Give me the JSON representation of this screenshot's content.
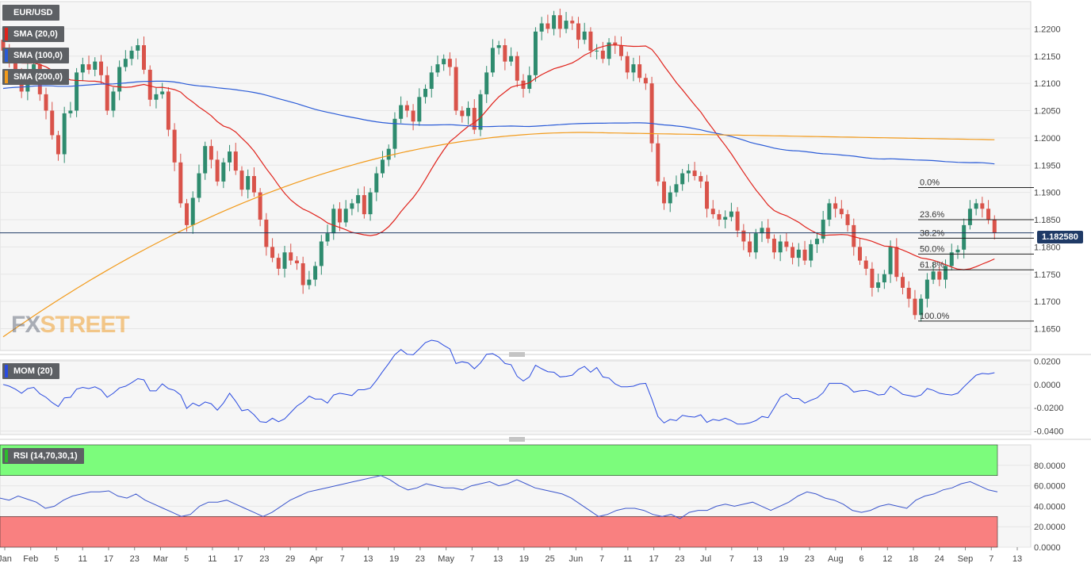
{
  "symbol": "EUR/USD",
  "indicators": {
    "sma20": {
      "label": "SMA (20,0)",
      "color": "#e0231c"
    },
    "sma100": {
      "label": "SMA (100,0)",
      "color": "#2a5bd7"
    },
    "sma200": {
      "label": "SMA (200,0)",
      "color": "#f29a1a"
    },
    "mom": {
      "label": "MOM (20)",
      "color": "#2a4be0"
    },
    "rsi": {
      "label": "RSI (14,70,30,1)",
      "color": "#3a55cc"
    }
  },
  "current_price": "1.182580",
  "logo": {
    "part1": "FX",
    "part2": "STREET"
  },
  "colors": {
    "bull": "#2e8b6e",
    "bear": "#d9534a",
    "overbought": "#7cfc7c",
    "oversold": "#f98080"
  },
  "chart_data": [
    {
      "type": "candlestick",
      "title": "EUR/USD",
      "x_ticks": [
        "Jan",
        "Feb",
        "5",
        "11",
        "17",
        "23",
        "Mar",
        "5",
        "11",
        "17",
        "23",
        "29",
        "Apr",
        "7",
        "13",
        "19",
        "23",
        "May",
        "7",
        "13",
        "19",
        "25",
        "Jun",
        "7",
        "11",
        "17",
        "23",
        "Jul",
        "7",
        "13",
        "19",
        "23",
        "Aug",
        "6",
        "12",
        "18",
        "24",
        "Sep",
        "7",
        "13"
      ],
      "y_ticks": [
        "1.1650",
        "1.1700",
        "1.1750",
        "1.1800",
        "1.1850",
        "1.1900",
        "1.1950",
        "1.2000",
        "1.2050",
        "1.2100",
        "1.2150",
        "1.2200"
      ],
      "ylim": [
        1.161,
        1.225
      ],
      "fibonacci": [
        {
          "label": "0.0%",
          "value": 1.1909
        },
        {
          "label": "23.6%",
          "value": 1.185
        },
        {
          "label": "38.2%",
          "value": 1.1816
        },
        {
          "label": "50.0%",
          "value": 1.1787
        },
        {
          "label": "61.8%",
          "value": 1.1758
        },
        {
          "label": "100.0%",
          "value": 1.1664
        }
      ],
      "last_price": 1.18258,
      "closes": [
        1.216,
        1.2145,
        1.212,
        1.2085,
        1.2125,
        1.2135,
        1.208,
        1.205,
        1.2005,
        1.197,
        1.2045,
        1.205,
        1.212,
        1.2135,
        1.2125,
        1.214,
        1.2115,
        1.205,
        1.2085,
        1.213,
        1.2145,
        1.216,
        1.217,
        1.2125,
        1.207,
        1.208,
        1.2085,
        1.2015,
        1.1955,
        1.188,
        1.184,
        1.189,
        1.1935,
        1.1985,
        1.196,
        1.192,
        1.1955,
        1.1975,
        1.194,
        1.1905,
        1.193,
        1.19,
        1.185,
        1.18,
        1.178,
        1.176,
        1.179,
        1.1775,
        1.177,
        1.173,
        1.174,
        1.1765,
        1.181,
        1.1825,
        1.187,
        1.1845,
        1.187,
        1.188,
        1.1895,
        1.186,
        1.19,
        1.1935,
        1.196,
        1.198,
        1.2035,
        1.206,
        1.205,
        1.203,
        1.2075,
        1.209,
        1.212,
        1.2135,
        1.2145,
        1.213,
        1.205,
        1.204,
        1.2055,
        1.2015,
        1.208,
        1.212,
        1.2165,
        1.217,
        1.214,
        1.215,
        1.2105,
        1.209,
        1.2115,
        1.2195,
        1.221,
        1.22,
        1.2225,
        1.22,
        1.2215,
        1.221,
        1.218,
        1.2195,
        1.216,
        1.216,
        1.2145,
        1.2175,
        1.217,
        1.215,
        1.212,
        1.2135,
        1.211,
        1.21,
        1.199,
        1.192,
        1.188,
        1.19,
        1.1915,
        1.1935,
        1.194,
        1.193,
        1.192,
        1.187,
        1.186,
        1.185,
        1.1855,
        1.1865,
        1.183,
        1.181,
        1.179,
        1.1825,
        1.1835,
        1.1815,
        1.179,
        1.181,
        1.18,
        1.178,
        1.1795,
        1.1775,
        1.1805,
        1.1815,
        1.185,
        1.188,
        1.187,
        1.186,
        1.184,
        1.18,
        1.1775,
        1.176,
        1.1725,
        1.1735,
        1.175,
        1.18,
        1.1745,
        1.1725,
        1.1705,
        1.1675,
        1.1705,
        1.174,
        1.1755,
        1.174,
        1.1765,
        1.179,
        1.1795,
        1.184,
        1.187,
        1.188,
        1.187,
        1.185,
        1.18258
      ]
    },
    {
      "type": "line",
      "title": "MOM (20)",
      "y_ticks": [
        "-0.0400",
        "-0.0200",
        "0.0000",
        "0.0200"
      ],
      "ylim": [
        -0.043,
        0.021
      ]
    },
    {
      "type": "line",
      "title": "RSI (14,70,30,1)",
      "y_ticks": [
        "0.0000",
        "20.0000",
        "40.0000",
        "60.0000",
        "80.0000"
      ],
      "ylim": [
        0,
        100
      ],
      "overbought": 70,
      "oversold": 30,
      "values": [
        48,
        46,
        50,
        47,
        44,
        38,
        40,
        46,
        50,
        52,
        54,
        54,
        55,
        50,
        48,
        52,
        46,
        42,
        38,
        34,
        30,
        32,
        40,
        44,
        44,
        46,
        42,
        38,
        34,
        30,
        34,
        40,
        46,
        50,
        54,
        56,
        58,
        60,
        62,
        64,
        66,
        68,
        70,
        66,
        60,
        56,
        58,
        62,
        60,
        58,
        58,
        56,
        60,
        62,
        64,
        60,
        62,
        66,
        62,
        58,
        56,
        54,
        52,
        48,
        42,
        36,
        30,
        32,
        36,
        38,
        38,
        36,
        32,
        30,
        32,
        28,
        34,
        36,
        36,
        40,
        42,
        40,
        42,
        44,
        40,
        36,
        40,
        44,
        50,
        54,
        52,
        48,
        46,
        42,
        36,
        34,
        36,
        40,
        42,
        40,
        38,
        46,
        50,
        52,
        56,
        58,
        62,
        64,
        60,
        56,
        54
      ]
    }
  ]
}
